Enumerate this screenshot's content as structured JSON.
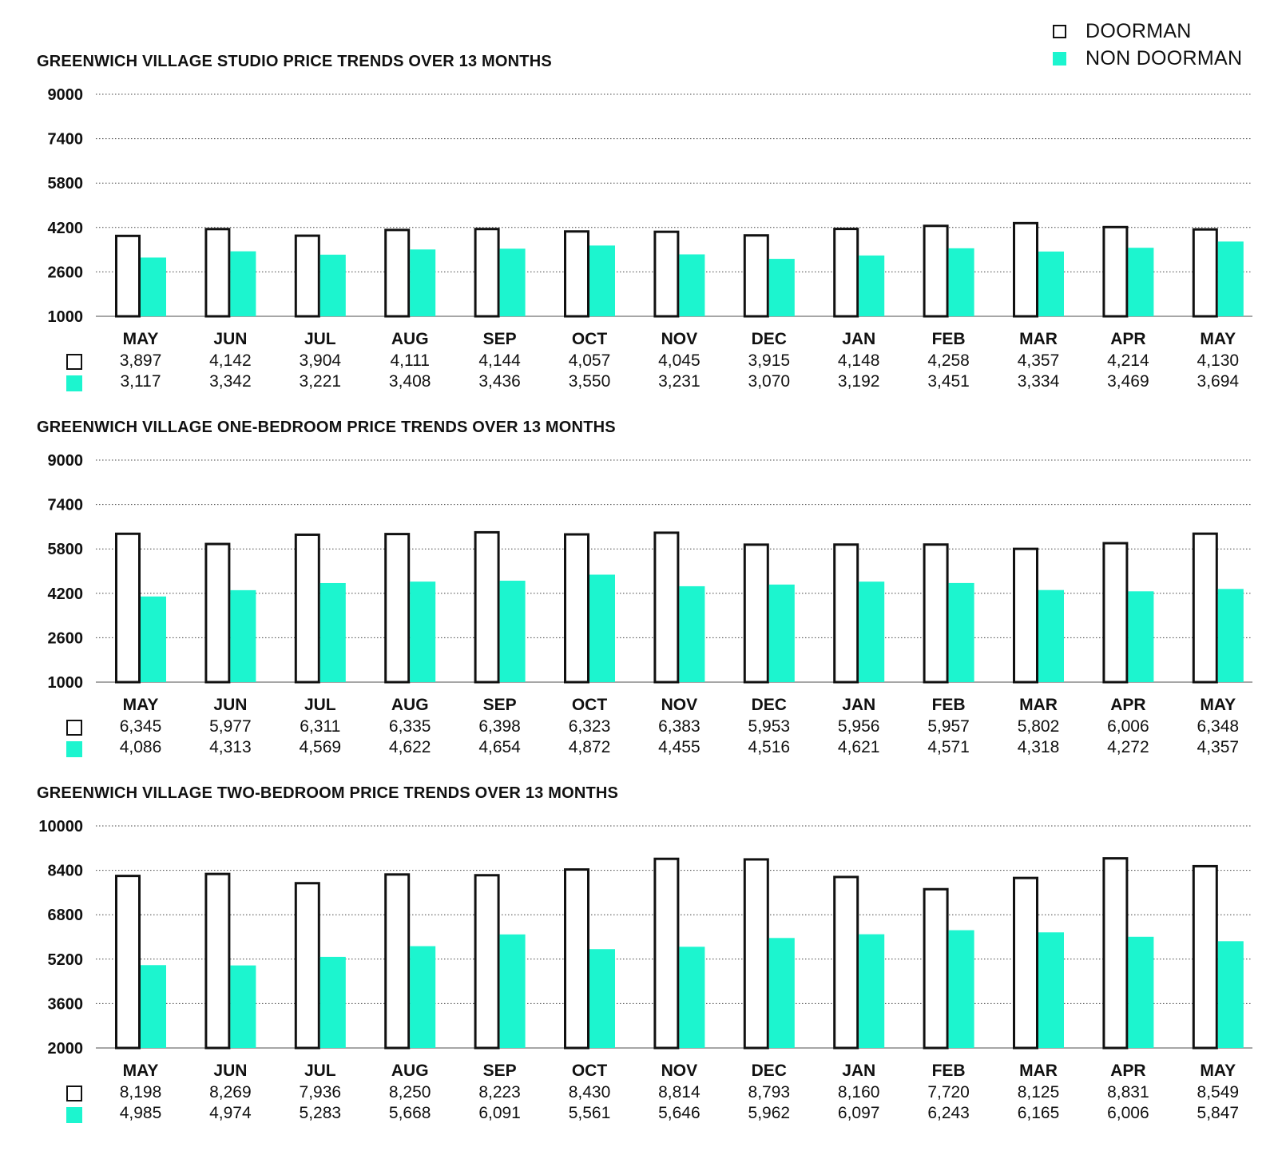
{
  "legend": {
    "doorman_label": "DOORMAN",
    "nondoorman_label": "NON DOORMAN"
  },
  "colors": {
    "doorman_fill": "#ffffff",
    "doorman_stroke": "#111111",
    "nondoorman_fill": "#1cf5cf",
    "text": "#111111",
    "grid": "#444444"
  },
  "chart_data": [
    {
      "type": "bar",
      "title": "GREENWICH VILLAGE STUDIO PRICE TRENDS OVER 13 MONTHS",
      "categories": [
        "MAY",
        "JUN",
        "JUL",
        "AUG",
        "SEP",
        "OCT",
        "NOV",
        "DEC",
        "JAN",
        "FEB",
        "MAR",
        "APR",
        "MAY"
      ],
      "series": [
        {
          "name": "DOORMAN",
          "values": [
            3897,
            4142,
            3904,
            4111,
            4144,
            4057,
            4045,
            3915,
            4148,
            4258,
            4357,
            4214,
            4130
          ],
          "labels": [
            "3,897",
            "4,142",
            "3,904",
            "4,111",
            "4,144",
            "4,057",
            "4,045",
            "3,915",
            "4,148",
            "4,258",
            "4,357",
            "4,214",
            "4,130"
          ]
        },
        {
          "name": "NON DOORMAN",
          "values": [
            3117,
            3342,
            3221,
            3408,
            3436,
            3550,
            3231,
            3070,
            3192,
            3451,
            3334,
            3469,
            3694
          ],
          "labels": [
            "3,117",
            "3,342",
            "3,221",
            "3,408",
            "3,436",
            "3,550",
            "3,231",
            "3,070",
            "3,192",
            "3,451",
            "3,334",
            "3,469",
            "3,694"
          ]
        }
      ],
      "yticks": [
        "9000",
        "7400",
        "5800",
        "4200",
        "2600",
        "1000"
      ],
      "ylim": [
        1000,
        9000
      ],
      "grid": true
    },
    {
      "type": "bar",
      "title": "GREENWICH VILLAGE ONE-BEDROOM PRICE TRENDS OVER 13 MONTHS",
      "categories": [
        "MAY",
        "JUN",
        "JUL",
        "AUG",
        "SEP",
        "OCT",
        "NOV",
        "DEC",
        "JAN",
        "FEB",
        "MAR",
        "APR",
        "MAY"
      ],
      "series": [
        {
          "name": "DOORMAN",
          "values": [
            6345,
            5977,
            6311,
            6335,
            6398,
            6323,
            6383,
            5953,
            5956,
            5957,
            5802,
            6006,
            6348
          ],
          "labels": [
            "6,345",
            "5,977",
            "6,311",
            "6,335",
            "6,398",
            "6,323",
            "6,383",
            "5,953",
            "5,956",
            "5,957",
            "5,802",
            "6,006",
            "6,348"
          ]
        },
        {
          "name": "NON DOORMAN",
          "values": [
            4086,
            4313,
            4569,
            4622,
            4654,
            4872,
            4455,
            4516,
            4621,
            4571,
            4318,
            4272,
            4357
          ],
          "labels": [
            "4,086",
            "4,313",
            "4,569",
            "4,622",
            "4,654",
            "4,872",
            "4,455",
            "4,516",
            "4,621",
            "4,571",
            "4,318",
            "4,272",
            "4,357"
          ]
        }
      ],
      "yticks": [
        "9000",
        "7400",
        "5800",
        "4200",
        "2600",
        "1000"
      ],
      "ylim": [
        1000,
        9000
      ],
      "grid": true
    },
    {
      "type": "bar",
      "title": "GREENWICH VILLAGE TWO-BEDROOM PRICE TRENDS OVER 13 MONTHS",
      "categories": [
        "MAY",
        "JUN",
        "JUL",
        "AUG",
        "SEP",
        "OCT",
        "NOV",
        "DEC",
        "JAN",
        "FEB",
        "MAR",
        "APR",
        "MAY"
      ],
      "series": [
        {
          "name": "DOORMAN",
          "values": [
            8198,
            8269,
            7936,
            8250,
            8223,
            8430,
            8814,
            8793,
            8160,
            7720,
            8125,
            8831,
            8549
          ],
          "labels": [
            "8,198",
            "8,269",
            "7,936",
            "8,250",
            "8,223",
            "8,430",
            "8,814",
            "8,793",
            "8,160",
            "7,720",
            "8,125",
            "8,831",
            "8,549"
          ]
        },
        {
          "name": "NON DOORMAN",
          "values": [
            4985,
            4974,
            5283,
            5668,
            6091,
            5561,
            5646,
            5962,
            6097,
            6243,
            6165,
            6006,
            5847
          ],
          "labels": [
            "4,985",
            "4,974",
            "5,283",
            "5,668",
            "6,091",
            "5,561",
            "5,646",
            "5,962",
            "6,097",
            "6,243",
            "6,165",
            "6,006",
            "5,847"
          ]
        }
      ],
      "yticks": [
        "10000",
        "8400",
        "6800",
        "5200",
        "3600",
        "2000"
      ],
      "ylim": [
        2000,
        10000
      ],
      "grid": true
    }
  ]
}
